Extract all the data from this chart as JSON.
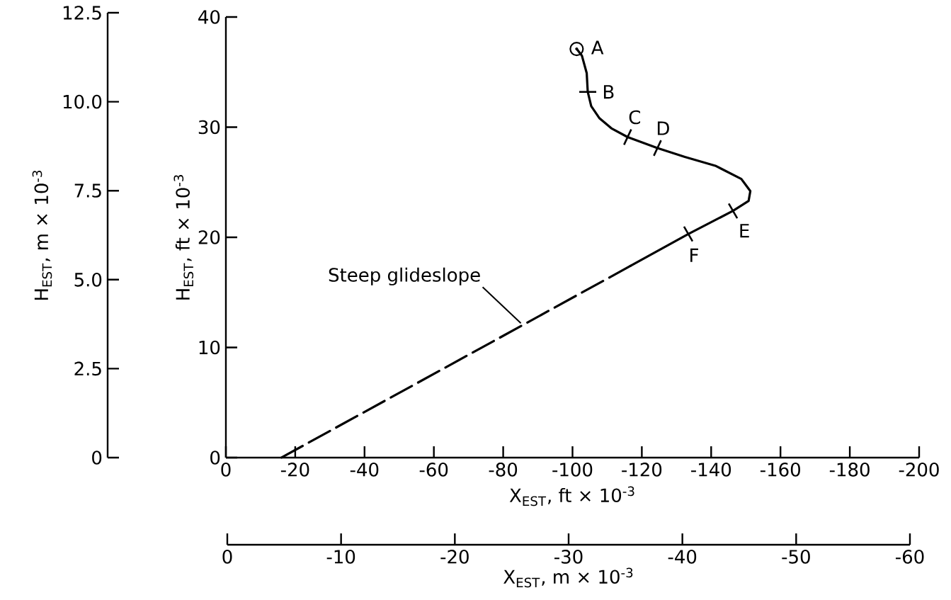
{
  "chart_data": {
    "type": "line",
    "marker": "none",
    "xlabel": "X$_{EST}$, ft × 10$^{-3}$",
    "ylabel": "H$_{EST}$, ft × 10$^{-3}$",
    "x2label": "X$_{EST}$, m × 10$^{-3}$",
    "y2label": "H$_{EST}$, m × 10$^{-3}$",
    "xlim": [
      0,
      -200
    ],
    "ylim": [
      0,
      40
    ],
    "xticks": [
      0,
      -20,
      -40,
      -60,
      -80,
      -100,
      -120,
      -140,
      -160,
      -180,
      -200
    ],
    "yticks": [
      0,
      10,
      20,
      30,
      40
    ],
    "x2lim": [
      0,
      -60
    ],
    "x2ticks": [
      0,
      -10,
      -20,
      -30,
      -40,
      -50,
      -60
    ],
    "y2lim": [
      0,
      12.5
    ],
    "y2ticks": [
      0,
      2.5,
      {
        "value": 5,
        "label": "5.0"
      },
      7.5,
      {
        "value": 10,
        "label": "10.0"
      },
      12.5
    ],
    "series": [
      {
        "color": "#000000",
        "line_style": "solid",
        "x": [
          -101.2,
          -102.7,
          -104.1,
          -104.4,
          -105.4,
          -107.8,
          -111.2,
          -115.9,
          -124.5,
          -132.4,
          -141.2,
          -148.7,
          -151.3,
          -150.8,
          -146.3,
          -133.4,
          -116.7
        ],
        "values": [
          37.1,
          36.5,
          34.9,
          33.2,
          31.9,
          30.8,
          29.9,
          29.1,
          28.1,
          27.3,
          26.5,
          25.3,
          24.2,
          23.3,
          22.4,
          20.3,
          17.4
        ]
      },
      {
        "color": "#000000",
        "line_style": "dashed",
        "x": [
          -116.7,
          -16.0
        ],
        "values": [
          17.4,
          0
        ]
      }
    ],
    "annotations": [
      {
        "text": "A",
        "x": -101.2,
        "y": 37.1
      },
      {
        "text": "B",
        "x": -104.4,
        "y": 33.2
      },
      {
        "text": "C",
        "x": -115.9,
        "y": 29.1
      },
      {
        "text": "D",
        "x": -124.5,
        "y": 28.1
      },
      {
        "text": "E",
        "x": -146.3,
        "y": 22.4
      },
      {
        "text": "F",
        "x": -133.4,
        "y": 20.3
      },
      {
        "text": "Steep glideslope",
        "x": -85.1,
        "y": 12.2
      }
    ]
  }
}
